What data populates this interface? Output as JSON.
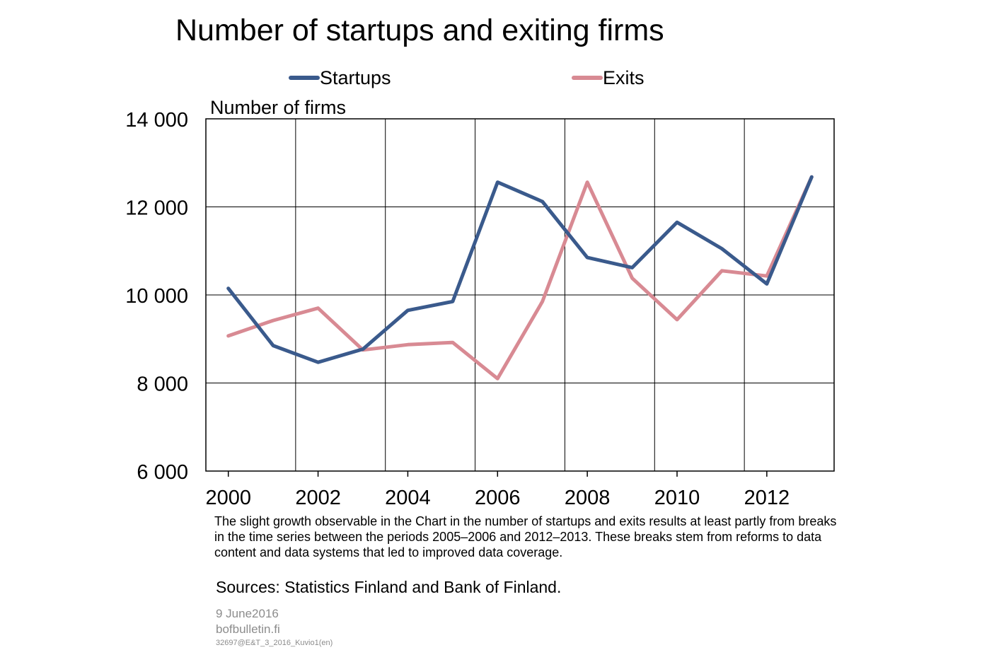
{
  "chart_data": {
    "type": "line",
    "title": "Number of startups and exiting firms",
    "ylabel": "Number of firms",
    "xlabel": "",
    "x": [
      2000,
      2001,
      2002,
      2003,
      2004,
      2005,
      2006,
      2007,
      2008,
      2009,
      2010,
      2011,
      2012,
      2013
    ],
    "xticks": [
      "2000",
      "2002",
      "2004",
      "2006",
      "2008",
      "2010",
      "2012"
    ],
    "xtick_years": [
      2000,
      2002,
      2004,
      2006,
      2008,
      2010,
      2012
    ],
    "yticks": [
      6000,
      8000,
      10000,
      12000,
      14000
    ],
    "ytick_labels": [
      "6 000",
      "8 000",
      "10 000",
      "12 000",
      "14 000"
    ],
    "ylim": [
      6000,
      14000
    ],
    "grid": true,
    "legend_position": "top",
    "series": [
      {
        "name": "Startups",
        "color": "#3a5a8c",
        "values": [
          10150,
          8850,
          8470,
          8770,
          9650,
          9850,
          12560,
          12120,
          10850,
          10620,
          11650,
          11050,
          10250,
          12680
        ]
      },
      {
        "name": "Exits",
        "color": "#d88a93",
        "values": [
          9070,
          9420,
          9700,
          8750,
          8870,
          8920,
          8100,
          9850,
          12560,
          10380,
          9440,
          10550,
          10430,
          12680
        ]
      }
    ]
  },
  "note": "The slight growth observable in the Chart in the number of startups and exits results at least partly from breaks in the time series between the periods 2005–2006 and 2012–2013. These breaks stem from reforms to data content and data systems that led to improved data coverage.",
  "sources": "Sources: Statistics Finland and Bank of Finland.",
  "footer": {
    "date": "9 June2016",
    "site": "bofbulletin.fi",
    "code": "32697@E&T_3_2016_Kuvio1(en)"
  }
}
